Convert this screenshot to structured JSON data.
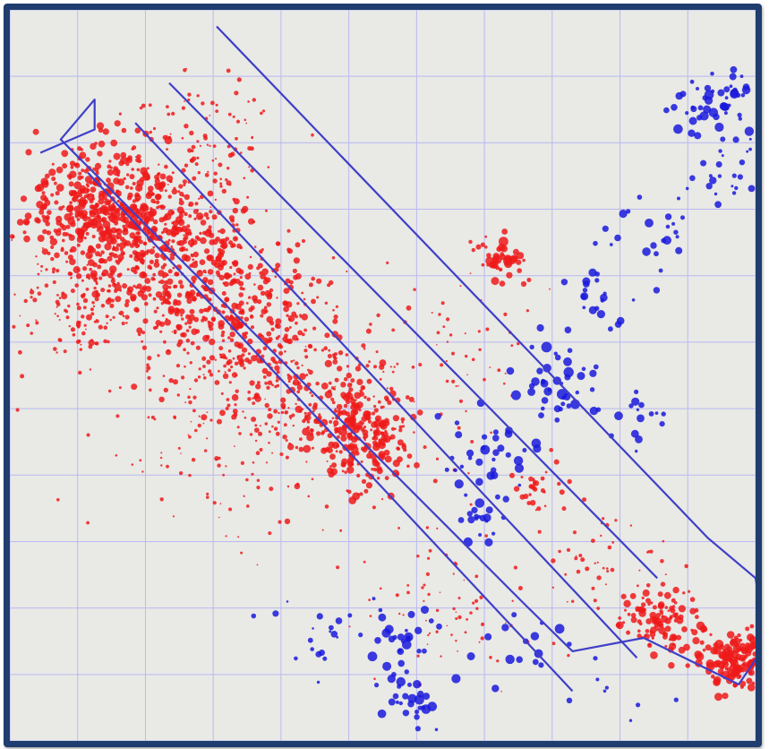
{
  "chart_data": {
    "type": "scatter",
    "title": "",
    "xlabel": "",
    "ylabel": "",
    "xlim": [
      0,
      11
    ],
    "ylim": [
      0,
      11
    ],
    "grid": true,
    "legend": "none",
    "colors": {
      "background": "#e9e9e6",
      "frame": "#1f3d6e",
      "grid": "#b9b9f2",
      "outline": "#3f3fc8",
      "red_series": "#ee1a1a",
      "blue_series": "#1a1adc"
    },
    "series": [
      {
        "color": "#ee1a1a",
        "clusters": [
          {
            "x": 1.4,
            "y": 8.0,
            "spread": 0.55,
            "n": 420,
            "size": 4
          },
          {
            "x": 2.4,
            "y": 7.3,
            "spread": 0.7,
            "n": 380,
            "size": 3.5
          },
          {
            "x": 3.4,
            "y": 6.3,
            "spread": 0.7,
            "n": 300,
            "size": 3.5
          },
          {
            "x": 5.2,
            "y": 4.6,
            "spread": 0.45,
            "n": 240,
            "size": 4
          },
          {
            "x": 4.4,
            "y": 5.3,
            "spread": 0.75,
            "n": 220,
            "size": 3
          },
          {
            "x": 2.8,
            "y": 8.8,
            "spread": 0.6,
            "n": 120,
            "size": 2.5
          },
          {
            "x": 1.0,
            "y": 6.6,
            "spread": 0.55,
            "n": 150,
            "size": 2.5
          },
          {
            "x": 3.0,
            "y": 4.6,
            "spread": 0.9,
            "n": 120,
            "size": 2
          },
          {
            "x": 6.5,
            "y": 5.6,
            "spread": 0.7,
            "n": 60,
            "size": 2
          },
          {
            "x": 7.8,
            "y": 3.8,
            "spread": 0.3,
            "n": 30,
            "size": 3
          },
          {
            "x": 9.6,
            "y": 1.8,
            "spread": 0.3,
            "n": 110,
            "size": 4
          },
          {
            "x": 10.7,
            "y": 1.2,
            "spread": 0.25,
            "n": 140,
            "size": 4.5
          },
          {
            "x": 7.3,
            "y": 7.2,
            "spread": 0.18,
            "n": 40,
            "size": 5
          },
          {
            "x": 6.3,
            "y": 2.0,
            "spread": 0.7,
            "n": 70,
            "size": 2
          },
          {
            "x": 8.8,
            "y": 2.6,
            "spread": 0.55,
            "n": 50,
            "size": 2.5
          }
        ]
      },
      {
        "color": "#1a1adc",
        "clusters": [
          {
            "x": 10.4,
            "y": 9.6,
            "spread": 0.3,
            "n": 55,
            "size": 5
          },
          {
            "x": 10.6,
            "y": 8.5,
            "spread": 0.35,
            "n": 25,
            "size": 4
          },
          {
            "x": 9.4,
            "y": 7.6,
            "spread": 0.35,
            "n": 22,
            "size": 4.5
          },
          {
            "x": 8.6,
            "y": 6.7,
            "spread": 0.3,
            "n": 22,
            "size": 5
          },
          {
            "x": 8.1,
            "y": 5.3,
            "spread": 0.3,
            "n": 45,
            "size": 5.5
          },
          {
            "x": 7.0,
            "y": 4.3,
            "spread": 0.3,
            "n": 30,
            "size": 5
          },
          {
            "x": 7.0,
            "y": 3.3,
            "spread": 0.25,
            "n": 20,
            "size": 5
          },
          {
            "x": 9.3,
            "y": 5.1,
            "spread": 0.25,
            "n": 15,
            "size": 4.5
          },
          {
            "x": 5.8,
            "y": 1.5,
            "spread": 0.3,
            "n": 30,
            "size": 5
          },
          {
            "x": 5.9,
            "y": 0.6,
            "spread": 0.2,
            "n": 25,
            "size": 5
          },
          {
            "x": 4.6,
            "y": 1.5,
            "spread": 0.4,
            "n": 20,
            "size": 3.5
          },
          {
            "x": 7.5,
            "y": 1.5,
            "spread": 0.35,
            "n": 15,
            "size": 5
          },
          {
            "x": 9.0,
            "y": 0.6,
            "spread": 0.5,
            "n": 10,
            "size": 3
          }
        ]
      }
    ],
    "outlines": [
      {
        "points": [
          [
            0.45,
            8.85
          ],
          [
            1.25,
            9.2
          ],
          [
            1.25,
            9.65
          ],
          [
            0.75,
            9.05
          ],
          [
            7.6,
            2.05
          ],
          [
            8.3,
            1.35
          ],
          [
            9.35,
            1.55
          ],
          [
            10.75,
            0.85
          ],
          [
            11.15,
            1.45
          ],
          [
            11.0,
            2.45
          ],
          [
            10.3,
            3.05
          ],
          [
            3.05,
            10.75
          ]
        ]
      },
      {
        "points": [
          [
            2.35,
            9.9
          ],
          [
            9.55,
            2.45
          ]
        ]
      },
      {
        "points": [
          [
            1.85,
            9.3
          ],
          [
            9.25,
            1.25
          ]
        ]
      },
      {
        "points": [
          [
            1.15,
            8.55
          ],
          [
            8.3,
            0.75
          ]
        ]
      }
    ]
  }
}
